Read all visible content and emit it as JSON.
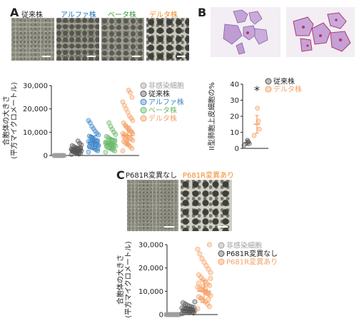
{
  "panels": {
    "A": "A",
    "B": "B",
    "C": "C"
  },
  "panel_a": {
    "strain_labels": [
      {
        "text": "従来株",
        "color": "#222222"
      },
      {
        "text": "アルファ株",
        "color": "#1f6fb4"
      },
      {
        "text": "ベータ株",
        "color": "#3a9a3a"
      },
      {
        "text": "デルタ株",
        "color": "#f08a24"
      }
    ]
  },
  "panel_c": {
    "labels": [
      {
        "text": "P681R変異なし",
        "color": "#222222"
      },
      {
        "text": "P681R変異あり",
        "color": "#f08a24"
      }
    ]
  },
  "colors": {
    "uninfected": "#9e9e9e",
    "parental": "#555555",
    "alpha": "#3f88c8",
    "beta": "#66b866",
    "delta": "#f5a064",
    "p681r_no": "#555555",
    "p681r_yes": "#f5a064"
  },
  "chart_data": [
    {
      "id": "A",
      "type": "scatter",
      "title": "",
      "xlabel": "",
      "ylabel": "合胞体の大きさ\n(平方マイクロメートル)",
      "ylim": [
        0,
        30000
      ],
      "yticks": [
        0,
        10000,
        20000,
        30000
      ],
      "ytick_labels": [
        "0",
        "10,000",
        "20,000",
        "30,000"
      ],
      "grid": false,
      "legend_position": "right",
      "series": [
        {
          "name": "非感染細胞",
          "color": "#9e9e9e",
          "mean": 0,
          "sd": 0,
          "values": [
            0,
            0,
            0,
            0,
            0,
            0,
            0,
            0,
            0,
            0,
            0,
            0,
            0,
            0,
            0,
            0,
            0,
            0,
            0,
            0
          ]
        },
        {
          "name": "従来株",
          "color": "#555555",
          "mean": 2300,
          "sd": 1300,
          "values": [
            500,
            800,
            1000,
            1200,
            1500,
            1700,
            1900,
            2000,
            2100,
            2200,
            2300,
            2400,
            2500,
            2600,
            2800,
            3000,
            3200,
            3500,
            3800,
            4200,
            4600,
            5200,
            6200,
            1100,
            1400,
            1800,
            2700,
            3300,
            600,
            900
          ]
        },
        {
          "name": "アルファ株",
          "color": "#3f88c8",
          "mean": 5600,
          "sd": 2800,
          "values": [
            1500,
            2000,
            2500,
            3000,
            3300,
            3600,
            4000,
            4300,
            4600,
            5000,
            5200,
            5500,
            5700,
            6000,
            6300,
            6600,
            7000,
            7400,
            7800,
            8300,
            8800,
            9500,
            10500,
            11500,
            12500,
            14000,
            15000,
            2800,
            4800,
            5900,
            6800,
            8000,
            3800,
            4400,
            6200
          ]
        },
        {
          "name": "ベータ株",
          "color": "#66b866",
          "mean": 5000,
          "sd": 2400,
          "values": [
            1400,
            1900,
            2400,
            2800,
            3100,
            3500,
            3800,
            4100,
            4400,
            4700,
            5000,
            5200,
            5500,
            5800,
            6100,
            6400,
            6800,
            7200,
            7700,
            8200,
            9000,
            10000,
            11200,
            12500,
            14000,
            4300,
            5300,
            6600,
            3300,
            4900
          ]
        },
        {
          "name": "デルタ株",
          "color": "#f5a064",
          "mean": 8500,
          "sd": 4000,
          "values": [
            2000,
            3000,
            3800,
            4500,
            5000,
            5500,
            6000,
            6500,
            7000,
            7500,
            8000,
            8500,
            9000,
            9500,
            10000,
            10500,
            11000,
            12000,
            13000,
            14000,
            15000,
            16000,
            17000,
            18500,
            20000,
            21500,
            23000,
            25000,
            27000,
            28000,
            6200,
            7200,
            8200,
            9200,
            10200,
            11500,
            4800,
            12500
          ]
        }
      ]
    },
    {
      "id": "B",
      "type": "scatter",
      "title": "",
      "xlabel": "",
      "ylabel": "II型肺胞上皮細胞の%",
      "ylim": [
        0,
        40
      ],
      "yticks": [
        0,
        10,
        20,
        30,
        40
      ],
      "ytick_labels": [
        "0",
        "10",
        "20",
        "30",
        "40"
      ],
      "grid": false,
      "legend_position": "top-right",
      "significance": "*",
      "series": [
        {
          "name": "従来株",
          "color": "#555555",
          "mean": 3.5,
          "sd": 1.5,
          "values": [
            2,
            3,
            4,
            5
          ]
        },
        {
          "name": "デルタ株",
          "color": "#f5a064",
          "mean": 15,
          "sd": 5.5,
          "values": [
            8,
            12,
            17,
            25
          ]
        }
      ]
    },
    {
      "id": "C",
      "type": "scatter",
      "title": "",
      "xlabel": "",
      "ylabel": "合胞体の大きさ\n(平方マイクロメートル)",
      "ylim": [
        0,
        30000
      ],
      "yticks": [
        0,
        10000,
        20000,
        30000
      ],
      "ytick_labels": [
        "0",
        "10,000",
        "20,000",
        "30,000"
      ],
      "grid": false,
      "legend_position": "right",
      "series": [
        {
          "name": "非感染細胞",
          "color": "#9e9e9e",
          "mean": 0,
          "sd": 0,
          "values": [
            0,
            0,
            0,
            0,
            0,
            0,
            0,
            0,
            0,
            0,
            0,
            0,
            0,
            0,
            0,
            0,
            0,
            0,
            0,
            0
          ]
        },
        {
          "name": "P681R変異なし",
          "color": "#555555",
          "mean": 2000,
          "sd": 1200,
          "values": [
            400,
            700,
            900,
            1100,
            1300,
            1500,
            1700,
            1900,
            2000,
            2100,
            2200,
            2400,
            2600,
            2800,
            3000,
            3300,
            3600,
            4000,
            4500,
            5000,
            5500,
            1200,
            1600,
            2300,
            2700,
            800
          ]
        },
        {
          "name": "P681R変異あり",
          "color": "#f5a064",
          "mean": 10000,
          "sd": 4800,
          "values": [
            2500,
            3500,
            4500,
            5500,
            6200,
            7000,
            7600,
            8200,
            8800,
            9400,
            10000,
            10600,
            11200,
            11800,
            12500,
            13200,
            14000,
            15000,
            16000,
            17000,
            18000,
            19500,
            21000,
            22500,
            24000,
            26000,
            28000,
            30000,
            9000,
            11000,
            12000,
            7000,
            13500,
            15500,
            6500,
            9800
          ]
        }
      ]
    }
  ]
}
